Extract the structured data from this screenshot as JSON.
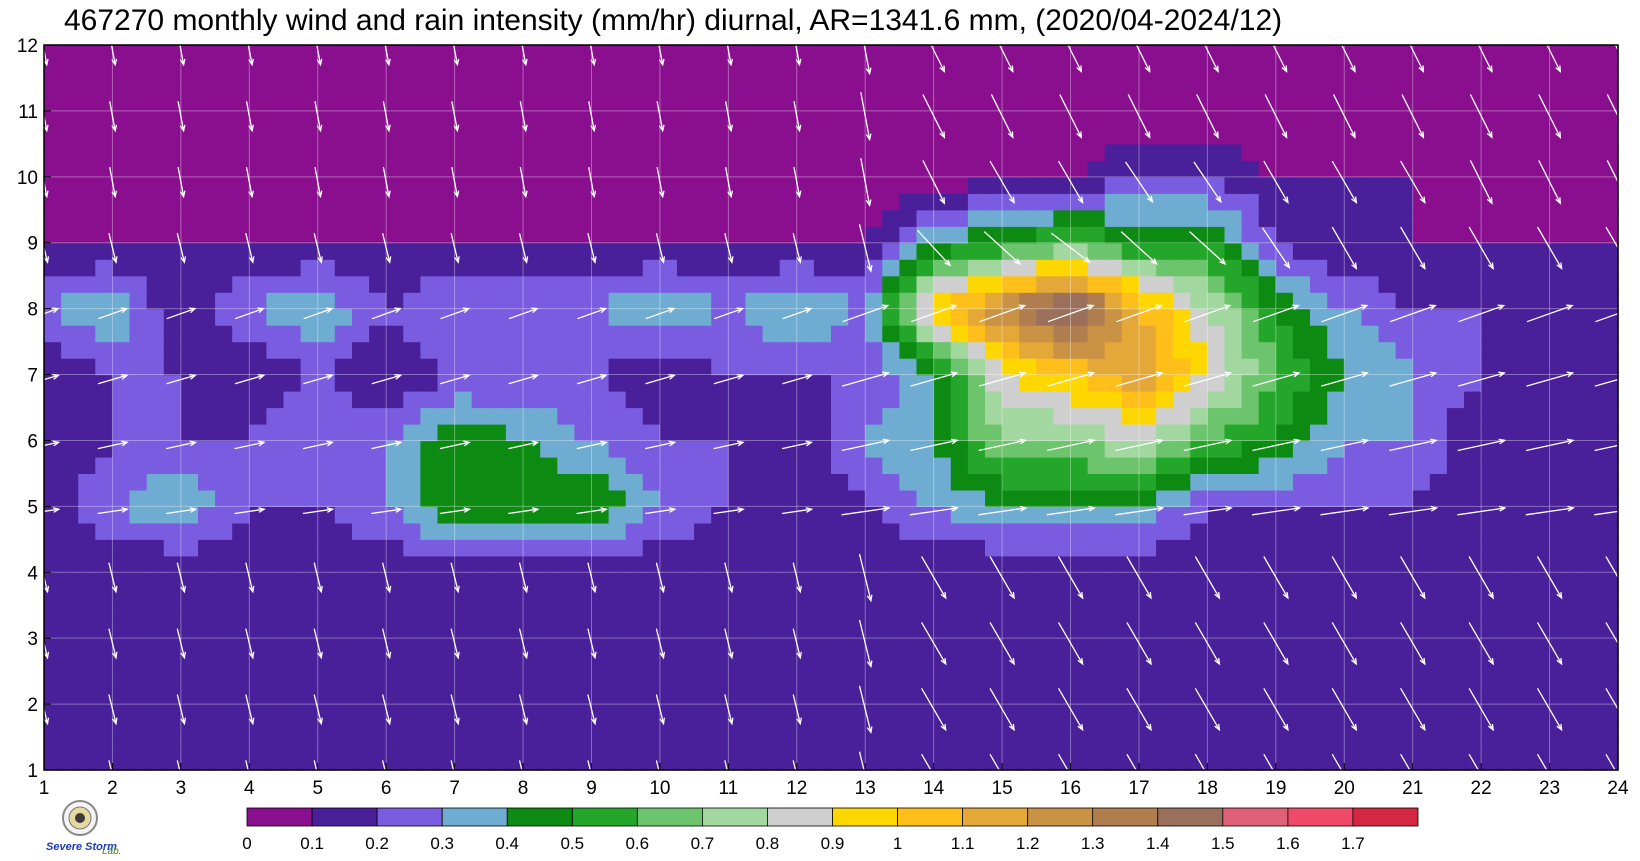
{
  "chart_data": {
    "type": "heatmap",
    "title": "467270 monthly wind and rain intensity (mm/hr) diurnal, AR=1341.6 mm, (2020/04-2024/12)",
    "xlabel": "",
    "ylabel": "",
    "x_ticks": [
      1,
      2,
      3,
      4,
      5,
      6,
      7,
      8,
      9,
      10,
      11,
      12,
      13,
      14,
      15,
      16,
      17,
      18,
      19,
      20,
      21,
      22,
      23,
      24
    ],
    "y_ticks": [
      1,
      2,
      3,
      4,
      5,
      6,
      7,
      8,
      9,
      10,
      11,
      12
    ],
    "xlim": [
      1,
      24
    ],
    "ylim": [
      1,
      12
    ],
    "grid": true,
    "colorbar": {
      "levels": [
        0,
        0.1,
        0.2,
        0.3,
        0.4,
        0.5,
        0.6,
        0.7,
        0.8,
        0.9,
        1,
        1.1,
        1.2,
        1.3,
        1.4,
        1.5,
        1.6,
        1.7
      ],
      "labels": [
        "0",
        "0.1",
        "0.2",
        "0.3",
        "0.4",
        "0.5",
        "0.6",
        "0.7",
        "0.8",
        "0.9",
        "1",
        "1.1",
        "1.2",
        "1.3",
        "1.4",
        "1.5",
        "1.6",
        "1.7"
      ],
      "colors": [
        "#8a0f8f",
        "#4a1f9a",
        "#7a5ce0",
        "#6eacd2",
        "#0c8a12",
        "#24a62a",
        "#6cc46c",
        "#a2d8a0",
        "#cfcfcf",
        "#ffd700",
        "#ffbf1a",
        "#e4a838",
        "#c99244",
        "#b07e4e",
        "#9a705c",
        "#e06078",
        "#f04a6a",
        "#d42842"
      ],
      "position": "bottom"
    },
    "rain_intensity_grid": [
      [
        0.1,
        0.1,
        0.1,
        0.1,
        0.1,
        0.1,
        0.1,
        0.1,
        0.1,
        0.1,
        0.1,
        0.1,
        0.1,
        0.1,
        0.1,
        0.1,
        0.1,
        0.1,
        0.1,
        0.1,
        0.1,
        0.1,
        0.1,
        0.1
      ],
      [
        0.1,
        0.1,
        0.1,
        0.1,
        0.1,
        0.1,
        0.1,
        0.1,
        0.1,
        0.1,
        0.1,
        0.1,
        0.1,
        0.1,
        0.1,
        0.1,
        0.1,
        0.1,
        0.1,
        0.1,
        0.1,
        0.1,
        0.1,
        0.1
      ],
      [
        0.1,
        0.1,
        0.1,
        0.1,
        0.1,
        0.1,
        0.1,
        0.1,
        0.1,
        0.1,
        0.1,
        0.1,
        0.1,
        0.1,
        0.1,
        0.1,
        0.1,
        0.1,
        0.1,
        0.1,
        0.1,
        0.1,
        0.1,
        0.1
      ],
      [
        0.1,
        0.1,
        0.1,
        0.1,
        0.1,
        0.1,
        0.1,
        0.1,
        0.1,
        0.1,
        0.1,
        0.1,
        0.1,
        0.1,
        0.1,
        0.1,
        0.1,
        0.1,
        0.1,
        0.1,
        0.1,
        0.1,
        0.1,
        0.1
      ],
      [
        0.1,
        0.3,
        0.4,
        0.2,
        0.2,
        0.3,
        0.5,
        0.5,
        0.5,
        0.3,
        0.2,
        0.1,
        0.2,
        0.3,
        0.4,
        0.4,
        0.4,
        0.2,
        0.2,
        0.2,
        0.2,
        0.1,
        0.1,
        0.1
      ],
      [
        0.1,
        0.2,
        0.2,
        0.2,
        0.3,
        0.3,
        0.5,
        0.4,
        0.3,
        0.2,
        0.2,
        0.1,
        0.3,
        0.4,
        0.7,
        0.7,
        0.8,
        0.6,
        0.5,
        0.3,
        0.3,
        0.1,
        0.1,
        0.1
      ],
      [
        0.1,
        0.2,
        0.2,
        0.1,
        0.2,
        0.1,
        0.2,
        0.2,
        0.2,
        0.1,
        0.2,
        0.2,
        0.2,
        0.4,
        0.9,
        1.0,
        1.2,
        0.9,
        0.6,
        0.4,
        0.3,
        0.2,
        0.1,
        0.1
      ],
      [
        0.3,
        0.4,
        0.1,
        0.3,
        0.4,
        0.2,
        0.3,
        0.3,
        0.3,
        0.4,
        0.3,
        0.4,
        0.3,
        1.0,
        1.3,
        1.6,
        1.1,
        0.8,
        0.5,
        0.3,
        0.2,
        0.2,
        0.1,
        0.1
      ],
      [
        0.1,
        0.1,
        0.1,
        0.1,
        0.1,
        0.1,
        0.1,
        0.1,
        0.1,
        0.1,
        0.1,
        0.1,
        0.1,
        0.4,
        0.5,
        0.6,
        0.5,
        0.5,
        0.2,
        0.1,
        0.1,
        0.1,
        0.1,
        0.1
      ],
      [
        0.0,
        0.0,
        0.0,
        0.0,
        0.0,
        0.0,
        0.0,
        0.0,
        0.0,
        0.0,
        0.0,
        0.0,
        0.0,
        0.0,
        0.1,
        0.1,
        0.2,
        0.2,
        0.1,
        0.1,
        0.1,
        0.0,
        0.0,
        0.0
      ],
      [
        0.0,
        0.0,
        0.0,
        0.0,
        0.0,
        0.0,
        0.0,
        0.0,
        0.0,
        0.0,
        0.0,
        0.0,
        0.0,
        0.0,
        0.0,
        0.0,
        0.0,
        0.0,
        0.0,
        0.0,
        0.0,
        0.0,
        0.0,
        0.0
      ],
      [
        0.0,
        0.0,
        0.0,
        0.0,
        0.0,
        0.0,
        0.0,
        0.0,
        0.0,
        0.0,
        0.0,
        0.0,
        0.0,
        0.0,
        0.0,
        0.0,
        0.0,
        0.0,
        0.0,
        0.0,
        0.0,
        0.0,
        0.0,
        0.0
      ]
    ],
    "wind_vector_color": "#ffffff",
    "contour_line_color": "#f0a030",
    "grid_color": "#ffffff"
  },
  "logo": {
    "text_main": "Severe Storm",
    "text_lab": "Lab."
  }
}
